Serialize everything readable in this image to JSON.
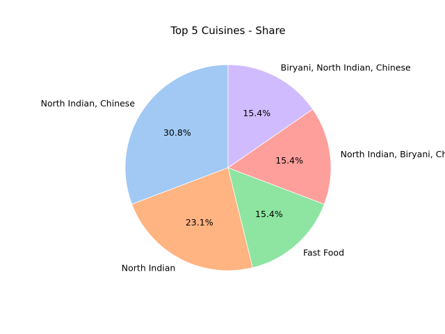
{
  "chart_data": {
    "type": "pie",
    "title": "Top 5 Cuisines - Share",
    "labels": [
      "North Indian, Chinese",
      "North Indian",
      "Fast Food",
      "North Indian, Biryani, Chinese",
      "Biryani, North Indian, Chinese"
    ],
    "values": [
      30.8,
      23.1,
      15.4,
      15.4,
      15.4
    ],
    "pct_labels": [
      "30.8%",
      "23.1%",
      "15.4%",
      "15.4%",
      "15.4%"
    ],
    "colors": [
      "#a1c9f4",
      "#ffb482",
      "#8de5a1",
      "#ff9f9b",
      "#d0bbff"
    ],
    "start_angle_deg": 90,
    "direction": "counterclockwise"
  }
}
